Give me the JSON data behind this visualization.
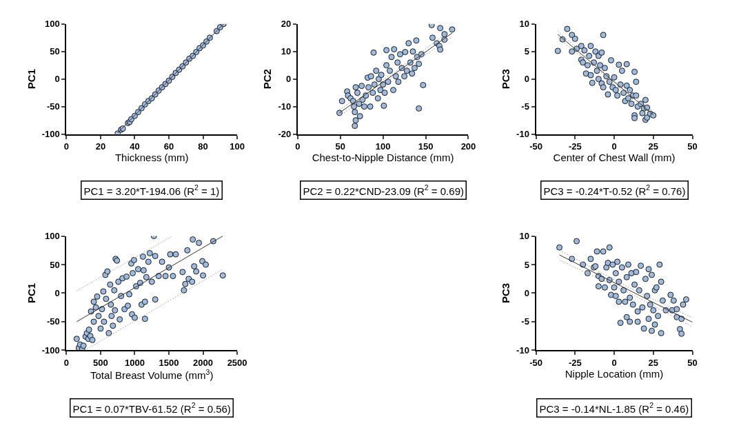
{
  "chart_data": [
    {
      "type": "scatter",
      "xlabel": "Thickness (mm)",
      "ylabel": "PC1",
      "annotations": [
        "PC1 = 3.20*T-194.06 (R$^{2}$ = 1)"
      ],
      "xlim": [
        0,
        100
      ],
      "ylim": [
        -100,
        100
      ],
      "xticks": [
        0,
        20,
        40,
        60,
        80,
        100
      ],
      "yticks": [
        -100,
        -50,
        0,
        50,
        100
      ],
      "series": [
        {
          "marker": "circle",
          "color": "#9dbbe1",
          "x": [
            30,
            32,
            33,
            36,
            37,
            38,
            40,
            42,
            44,
            46,
            48,
            50,
            52,
            54,
            56,
            58,
            60,
            62,
            64,
            66,
            68,
            70,
            72,
            74,
            76,
            78,
            80,
            82,
            84,
            88,
            90,
            92
          ],
          "values": [
            -99,
            -92,
            -90,
            -80,
            -78,
            -73,
            -67,
            -60,
            -53,
            -46,
            -40,
            -35,
            -28,
            -21,
            -15,
            -9,
            -3,
            4,
            11,
            17,
            23,
            30,
            37,
            42,
            49,
            56,
            61,
            68,
            75,
            87,
            94,
            100
          ]
        },
        {
          "type": "line",
          "color": "#333333",
          "line_style": "solid",
          "x": [
            30,
            92
          ],
          "values": [
            -98,
            100
          ]
        }
      ]
    },
    {
      "type": "scatter",
      "xlabel": "Chest-to-Nipple Distance (mm)",
      "ylabel": "PC2",
      "annotations": [
        "PC2 = 0.22*CND-23.09 (R$^{2}$ = 0.69)"
      ],
      "xlim": [
        0,
        200
      ],
      "ylim": [
        -20,
        20
      ],
      "xticks": [
        0,
        50,
        100,
        150,
        200
      ],
      "yticks": [
        -20,
        -10,
        0,
        10,
        20
      ],
      "series": [
        {
          "marker": "circle",
          "color": "#9dbbe1",
          "x": [
            49,
            52,
            58,
            59,
            62,
            65,
            66,
            67,
            67,
            68,
            68,
            70,
            72,
            73,
            75,
            76,
            78,
            80,
            82,
            83,
            85,
            86,
            88,
            89,
            90,
            92,
            94,
            95,
            97,
            98,
            100,
            101,
            102,
            104,
            104,
            106,
            108,
            110,
            112,
            113,
            115,
            117,
            118,
            120,
            122,
            125,
            126,
            128,
            130,
            132,
            134,
            135,
            137,
            139,
            140,
            142,
            142,
            145,
            147,
            157,
            158,
            163,
            166,
            167,
            167,
            172,
            172,
            181
          ],
          "values": [
            -12.3,
            -8,
            -4.5,
            -6,
            -7,
            -8,
            -10,
            -17,
            -12,
            -15,
            -3,
            -5,
            -9,
            -13.5,
            -2.5,
            -7.5,
            -10,
            -6,
            0.5,
            -3,
            -10,
            1,
            -5,
            9.6,
            -2,
            3,
            -7,
            0,
            -4,
            1.5,
            -2,
            -9.7,
            -5,
            5,
            10.5,
            -1,
            3,
            8,
            -4,
            10.8,
            1,
            6,
            -1,
            9,
            4,
            1,
            9.8,
            3,
            13,
            6,
            2,
            10,
            4,
            14,
            8,
            5.5,
            -10.7,
            9,
            -2.2,
            19.6,
            15,
            13,
            12,
            10.7,
            18.5,
            16.3,
            14.3,
            18
          ]
        },
        {
          "type": "line",
          "color": "#333333",
          "line_style": "solid",
          "x": [
            49,
            181
          ],
          "values": [
            -12.3,
            16.7
          ]
        },
        {
          "type": "line",
          "color": "#aaaaaa",
          "line_style": "dotted",
          "x": [
            49,
            115,
            181
          ],
          "values": [
            -13.5,
            1.6,
            15.2
          ]
        },
        {
          "type": "line",
          "color": "#aaaaaa",
          "line_style": "dotted",
          "x": [
            49,
            115,
            181
          ],
          "values": [
            -11.1,
            2.8,
            18.2
          ]
        }
      ]
    },
    {
      "type": "scatter",
      "xlabel": "Center of Chest Wall (mm)",
      "ylabel": "PC3",
      "annotations": [
        "PC3 = -0.24*T-0.52 (R$^{2}$ = 0.76)"
      ],
      "xlim": [
        -50,
        50
      ],
      "ylim": [
        -10,
        10
      ],
      "xticks": [
        -50,
        -25,
        0,
        25,
        50
      ],
      "yticks": [
        -10,
        -5,
        0,
        5,
        10
      ],
      "series": [
        {
          "marker": "circle",
          "color": "#9dbbe1",
          "x": [
            -36,
            -33,
            -30,
            -27,
            -27,
            -25,
            -24,
            -21,
            -21,
            -20,
            -19,
            -18,
            -17,
            -16,
            -15,
            -15,
            -14,
            -13,
            -12,
            -11,
            -10,
            -10,
            -9,
            -8,
            -8,
            -7,
            -7,
            -6,
            -5,
            -4,
            -3,
            -2,
            -1,
            0,
            1,
            2,
            3,
            4,
            5,
            6,
            7,
            8,
            8,
            9,
            10,
            11,
            12,
            13,
            13,
            13,
            14,
            14,
            15,
            17,
            18,
            19,
            20,
            20,
            21,
            21,
            23,
            25
          ],
          "values": [
            5.1,
            7.2,
            9.1,
            8,
            5,
            7.3,
            5.5,
            6,
            3.5,
            3,
            5.2,
            1,
            2.5,
            4.2,
            6,
            0.7,
            -0.7,
            3,
            5,
            1.5,
            4.2,
            0,
            2.5,
            4.8,
            -0.8,
            8,
            -1.5,
            2,
            0.5,
            -2.8,
            -0.5,
            3.4,
            -1.5,
            0.3,
            -2,
            -3,
            2.6,
            -1,
            1.5,
            -2.5,
            -4,
            2.7,
            -1.2,
            -3.5,
            -2,
            -4.5,
            -3,
            1.3,
            -6.6,
            -7.1,
            -0.5,
            -3,
            -5,
            -4.5,
            -6.2,
            -5.3,
            -3.8,
            -7.4,
            -5.2,
            -7,
            -6.3,
            -6.6
          ]
        },
        {
          "type": "line",
          "color": "#333333",
          "line_style": "solid",
          "x": [
            -36,
            25
          ],
          "values": [
            8.1,
            -6.5
          ]
        },
        {
          "type": "line",
          "color": "#aaaaaa",
          "line_style": "dotted",
          "x": [
            -36,
            -5,
            25
          ],
          "values": [
            7.5,
            0.4,
            -7.1
          ]
        },
        {
          "type": "line",
          "color": "#aaaaaa",
          "line_style": "dotted",
          "x": [
            -36,
            -5,
            25
          ],
          "values": [
            8.7,
            0.8,
            -5.9
          ]
        }
      ]
    },
    {
      "type": "scatter",
      "xlabel": "Total Breast Volume (mm$^{3}$)",
      "ylabel": "PC1",
      "annotations": [
        "PC1 = 0.07*TBV-61.52 (R$^{2}$ = 0.56)"
      ],
      "xlim": [
        0,
        2500
      ],
      "ylim": [
        -100,
        100
      ],
      "xticks": [
        0,
        500,
        1000,
        1500,
        2000,
        2500
      ],
      "yticks": [
        -100,
        -50,
        0,
        50,
        100
      ],
      "series": [
        {
          "marker": "circle",
          "color": "#9dbbe1",
          "x": [
            150,
            180,
            200,
            230,
            250,
            280,
            300,
            320,
            330,
            350,
            360,
            380,
            400,
            400,
            430,
            450,
            470,
            500,
            520,
            540,
            550,
            570,
            580,
            600,
            620,
            640,
            650,
            660,
            680,
            700,
            710,
            720,
            740,
            760,
            780,
            800,
            820,
            850,
            880,
            900,
            920,
            950,
            960,
            970,
            990,
            1000,
            1020,
            1050,
            1080,
            1100,
            1120,
            1130,
            1150,
            1150,
            1170,
            1200,
            1220,
            1250,
            1280,
            1300,
            1300,
            1350,
            1400,
            1450,
            1500,
            1520,
            1560,
            1600,
            1700,
            1720,
            1740,
            1770,
            1790,
            1840,
            1850,
            1870,
            1900,
            1940,
            1990,
            2000,
            2040,
            2150,
            2290
          ],
          "values": [
            -80,
            -96,
            -90,
            -98,
            -92,
            -76,
            -70,
            -80,
            -64,
            -75,
            -32,
            -82,
            -15,
            -50,
            -25,
            -6,
            -40,
            -62,
            -28,
            3,
            -50,
            32,
            -10,
            38,
            -70,
            15,
            -20,
            -40,
            -57,
            5,
            -30,
            60,
            57,
            20,
            -46,
            -5,
            26,
            -28,
            29,
            -22,
            -2,
            52,
            -37,
            35,
            58,
            -43,
            12,
            42,
            18,
            -20,
            64,
            40,
            -15,
            -45,
            28,
            55,
            70,
            20,
            100,
            -11,
            65,
            30,
            55,
            30,
            45,
            68,
            30,
            68,
            37,
            5,
            16,
            75,
            25,
            20,
            94,
            47,
            38,
            88,
            56,
            31,
            50,
            91,
            31
          ]
        },
        {
          "type": "line",
          "color": "#333333",
          "line_style": "solid",
          "x": [
            150,
            2290
          ],
          "values": [
            -50,
            100
          ]
        },
        {
          "type": "line",
          "color": "#aaaaaa",
          "line_style": "dotted",
          "x": [
            150,
            1550
          ],
          "values": [
            4,
            100
          ]
        },
        {
          "type": "line",
          "color": "#aaaaaa",
          "line_style": "dotted",
          "x": [
            300,
            2290
          ],
          "values": [
            -98,
            42
          ]
        }
      ]
    },
    {
      "type": "scatter",
      "xlabel": "Nipple Location (mm)",
      "ylabel": "PC3",
      "annotations": [
        "PC3 = -0.14*NL-1.85 (R$^{2}$ = 0.46)"
      ],
      "xlim": [
        -50,
        50
      ],
      "ylim": [
        -10,
        10
      ],
      "xticks": [
        -50,
        -25,
        0,
        25,
        50
      ],
      "yticks": [
        -10,
        -5,
        0,
        5,
        10
      ],
      "series": [
        {
          "marker": "circle",
          "color": "#9dbbe1",
          "x": [
            -35,
            -27,
            -24,
            -20,
            -17,
            -15,
            -13,
            -12,
            -11,
            -10,
            -10,
            -8,
            -7,
            -6,
            -5,
            -4,
            -3,
            -3,
            -2,
            -1,
            0,
            1,
            1,
            2,
            3,
            3,
            4,
            5,
            6,
            7,
            8,
            8,
            9,
            10,
            10,
            11,
            12,
            13,
            14,
            15,
            15,
            16,
            17,
            18,
            19,
            20,
            21,
            22,
            22,
            23,
            24,
            24,
            25,
            26,
            26,
            27,
            28,
            29,
            30,
            30,
            31,
            33,
            36,
            37,
            38,
            40,
            40,
            42,
            43,
            43,
            44,
            46
          ],
          "values": [
            8,
            6,
            9.1,
            5,
            3.5,
            6,
            4.5,
            4.7,
            7.3,
            1.2,
            3,
            2.5,
            7.3,
            1,
            4.5,
            5.3,
            8,
            2.3,
            -0.3,
            5,
            1,
            3.5,
            -0.5,
            5.5,
            2,
            -1.5,
            -5.2,
            4.5,
            0.5,
            -1.5,
            2.8,
            -4.2,
            5,
            -0.8,
            -5,
            3.5,
            -2,
            1.5,
            3.7,
            -3.2,
            -5,
            0.5,
            4.8,
            -2.5,
            -6.2,
            2.5,
            -0.5,
            -4.5,
            4.2,
            -2,
            3.2,
            -6.6,
            -3,
            -5.5,
            0.5,
            1,
            -4,
            5,
            -7,
            2,
            -1.3,
            -3,
            -0.3,
            -3,
            -1.3,
            -4.2,
            -2.8,
            -6.3,
            -4.5,
            -7.1,
            -2,
            -1.1
          ]
        },
        {
          "type": "line",
          "color": "#333333",
          "line_style": "solid",
          "x": [
            -35,
            50
          ],
          "values": [
            6.7,
            -5.1
          ]
        },
        {
          "type": "line",
          "color": "#aaaaaa",
          "line_style": "dotted",
          "x": [
            -35,
            10,
            50
          ],
          "values": [
            5.8,
            0.0,
            -5.9
          ]
        },
        {
          "type": "line",
          "color": "#aaaaaa",
          "line_style": "dotted",
          "x": [
            -35,
            10,
            50
          ],
          "values": [
            7.5,
            0.9,
            -4.3
          ]
        }
      ]
    }
  ]
}
